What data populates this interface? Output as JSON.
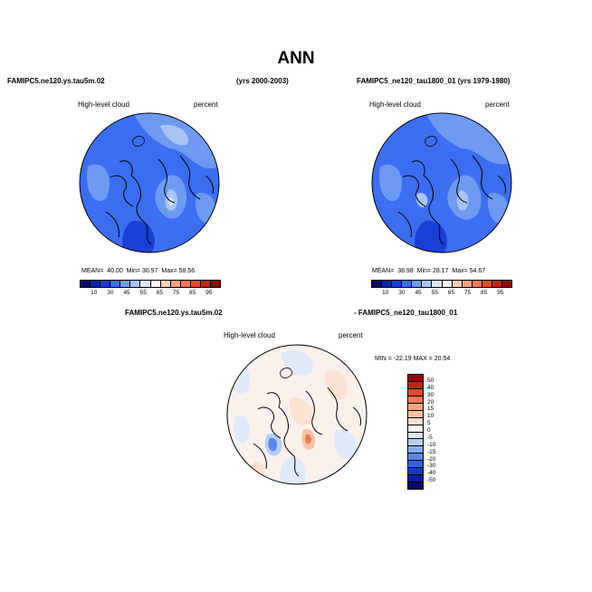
{
  "title": "ANN",
  "panel_test": {
    "case_name": "FAMIPC5.ne120.ys.tau5m.02",
    "years": "(yrs 2000-2003)",
    "variable": "High-level cloud",
    "units": "percent",
    "mean_label": "MEAN=",
    "mean": "40.00",
    "min_label": "Min=",
    "min": "30.97",
    "max_label": "Max=",
    "max": "58.56"
  },
  "panel_control": {
    "case_name": "FAMIPC5_ne120_tau1800_01 (yrs 1979-1980)",
    "variable": "High-level cloud",
    "units": "percent",
    "mean_label": "MEAN=",
    "mean": "38.98",
    "min_label": "Min=",
    "min": "28.17",
    "max_label": "Max=",
    "max": "54.67"
  },
  "panel_diff": {
    "case_test": "FAMIPC5.ne120.ys.tau5m.02",
    "case_control": "- FAMIPC5_ne120_tau1800_01",
    "variable": "High-level cloud",
    "units": "percent",
    "minmax": "MIN = -22.19  MAX =  20.54"
  },
  "colorbar_abs": {
    "ticks": [
      "10",
      "30",
      "45",
      "55",
      "65",
      "75",
      "85",
      "95"
    ],
    "colors": [
      "#08086b",
      "#0a23a3",
      "#1a3fd9",
      "#3d6ef2",
      "#6f9af2",
      "#a8c4f2",
      "#dde6f7",
      "#f9f3f0",
      "#f8cdb6",
      "#f4a484",
      "#ee7a56",
      "#e04d2c",
      "#c42410",
      "#8b0a05"
    ]
  },
  "colorbar_diff": {
    "ticks": [
      "50",
      "40",
      "30",
      "20",
      "15",
      "10",
      "5",
      "0",
      "-5",
      "-10",
      "-15",
      "-20",
      "-30",
      "-40",
      "-50"
    ],
    "colors": [
      "#8b0a05",
      "#c42410",
      "#e04d2c",
      "#ee7a56",
      "#f4a484",
      "#f8c2a6",
      "#fde2d3",
      "#fbf1ec",
      "#dfe9f9",
      "#b8cdf3",
      "#89acf0",
      "#5c88ee",
      "#3560e3",
      "#163bc6",
      "#0a1d96",
      "#08086b"
    ]
  }
}
